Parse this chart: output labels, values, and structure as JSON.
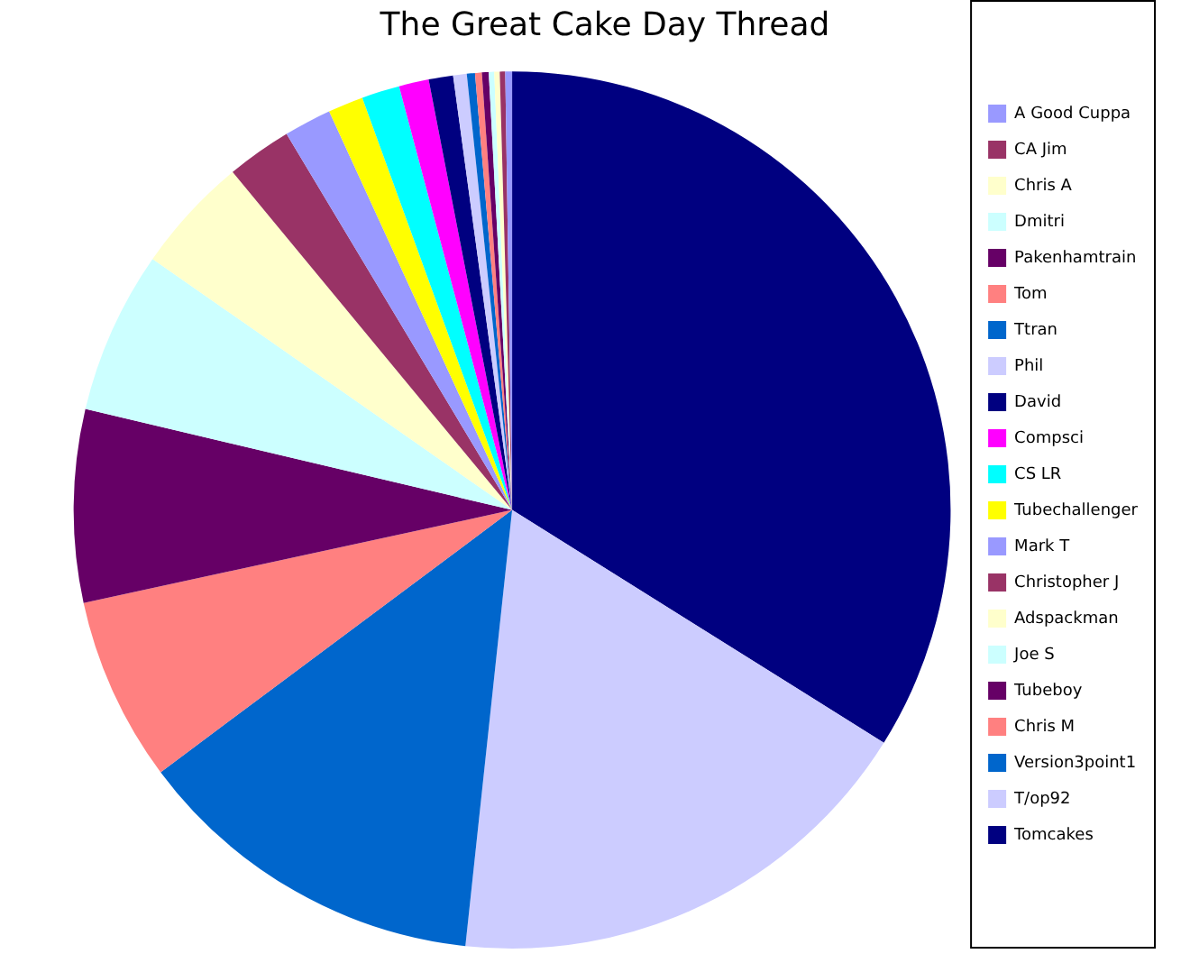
{
  "chart_data": {
    "type": "pie",
    "title": "The Great Cake Day Thread",
    "legend": "right",
    "categories": [
      "A Good Cuppa",
      "CA Jim",
      "Chris A",
      "Dmitri",
      "Pakenhamtrain",
      "Tom",
      "Ttran",
      "Phil",
      "David",
      "Compsci",
      "CS LR",
      "Tubechallenger",
      "Mark T",
      "Christopher J",
      "Adspackman",
      "Joe S",
      "Tubeboy",
      "Chris M",
      "Version3point1",
      "T/op92",
      "Tomcakes"
    ],
    "values": [
      0.25,
      0.2,
      0.2,
      0.2,
      0.25,
      0.25,
      0.3,
      0.5,
      0.9,
      1.1,
      1.4,
      1.3,
      1.75,
      2.4,
      4.3,
      6.0,
      7.1,
      6.8,
      13.1,
      17.8,
      33.9
    ],
    "colors": [
      "#9999ff",
      "#993366",
      "#ffffcc",
      "#ccffff",
      "#660066",
      "#ff8080",
      "#0066cc",
      "#ccccff",
      "#000080",
      "#ff00ff",
      "#00ffff",
      "#ffff00",
      "#9999ff",
      "#993366",
      "#ffffcc",
      "#ccffff",
      "#660066",
      "#ff8080",
      "#0066cc",
      "#ccccff",
      "#000080"
    ]
  }
}
